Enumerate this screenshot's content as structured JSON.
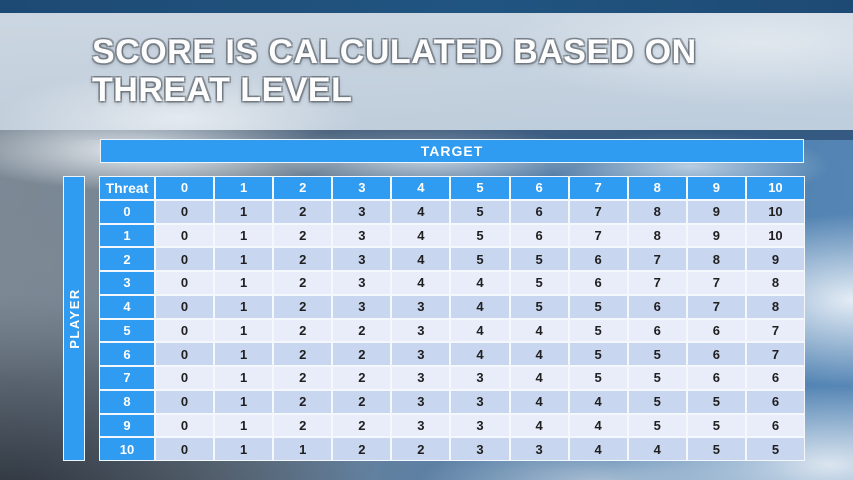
{
  "title": {
    "line1": "SCORE IS CALCULATED BASED ON",
    "line2": "THREAT LEVEL"
  },
  "table": {
    "target_label": "TARGET",
    "player_label": "PLAYER",
    "corner_label": "Threat",
    "column_headers": [
      "0",
      "1",
      "2",
      "3",
      "4",
      "5",
      "6",
      "7",
      "8",
      "9",
      "10"
    ],
    "row_headers": [
      "0",
      "1",
      "2",
      "3",
      "4",
      "5",
      "6",
      "7",
      "8",
      "9",
      "10"
    ],
    "rows": [
      [
        0,
        1,
        2,
        3,
        4,
        5,
        6,
        7,
        8,
        9,
        10
      ],
      [
        0,
        1,
        2,
        3,
        4,
        5,
        6,
        7,
        8,
        9,
        10
      ],
      [
        0,
        1,
        2,
        3,
        4,
        5,
        5,
        6,
        7,
        8,
        9
      ],
      [
        0,
        1,
        2,
        3,
        4,
        4,
        5,
        6,
        7,
        7,
        8
      ],
      [
        0,
        1,
        2,
        3,
        3,
        4,
        5,
        5,
        6,
        7,
        8
      ],
      [
        0,
        1,
        2,
        2,
        3,
        4,
        4,
        5,
        6,
        6,
        7
      ],
      [
        0,
        1,
        2,
        2,
        3,
        4,
        4,
        5,
        5,
        6,
        7
      ],
      [
        0,
        1,
        2,
        2,
        3,
        3,
        4,
        5,
        5,
        6,
        6
      ],
      [
        0,
        1,
        2,
        2,
        3,
        3,
        4,
        4,
        5,
        5,
        6
      ],
      [
        0,
        1,
        2,
        2,
        3,
        3,
        4,
        4,
        5,
        5,
        6
      ],
      [
        0,
        1,
        1,
        2,
        2,
        3,
        3,
        4,
        4,
        5,
        5
      ]
    ]
  },
  "colors": {
    "accent_blue": "#2f9bf1",
    "row_even": "#c9d6f0",
    "row_odd": "#e8edf9",
    "cell_text": "#1f1f1f",
    "gridline": "#f4f7fb",
    "top_band": "#1d4a74"
  }
}
